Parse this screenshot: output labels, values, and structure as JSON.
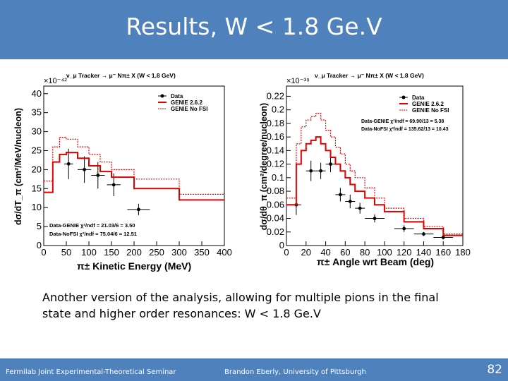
{
  "slide": {
    "title": "Results, W < 1.8 Ge.V",
    "caption": "Another version of the analysis, allowing for multiple pions in the final state and higher order resonances:  W < 1.8 Ge.V",
    "footer_left": "Fermilab Joint Experimental-Theoretical Seminar",
    "footer_center": "Brandon Eberly, University of Pittsburgh",
    "page_number": "82"
  },
  "colors": {
    "header": "#4f81bd",
    "genie": "#e00000",
    "nofsi": "#e00000",
    "data": "#000000"
  },
  "chart_data": [
    {
      "type": "line",
      "title": "ν_μ Tracker → μ⁻ Nπ± X  (W < 1.8 GeV)",
      "exponent": "×10⁻⁴²",
      "xlabel": "π± Kinetic Energy (MeV)",
      "ylabel": "dσ/dT_π  (cm²/MeV/nucleon)",
      "xlim": [
        0,
        400
      ],
      "ylim": [
        0,
        42
      ],
      "xticks": [
        "0",
        "50",
        "100",
        "150",
        "200",
        "250",
        "300",
        "350",
        "400"
      ],
      "yticks": [
        "0",
        "5",
        "10",
        "15",
        "20",
        "25",
        "30",
        "35",
        "40"
      ],
      "legend": {
        "placement": "top-right",
        "entries": [
          "Data",
          "GENIE 2.6.2",
          "GENIE No FSI"
        ]
      },
      "stats": [
        "Data-GENIE  χ²/ndf = 21.03/6 = 3.50",
        "Data-NoFSI  χ²/ndf = 75.04/6 = 12.51"
      ],
      "series": [
        {
          "name": "Data",
          "kind": "points",
          "x": [
            55,
            90,
            120,
            155,
            210
          ],
          "y": [
            21.5,
            20.0,
            18.5,
            16.0,
            9.5
          ],
          "yerr": [
            4.0,
            3.5,
            3.5,
            3.0,
            1.5
          ],
          "xerr": [
            10,
            15,
            15,
            15,
            25
          ]
        },
        {
          "name": "GENIE 2.6.2",
          "kind": "step",
          "edges": [
            0,
            20,
            35,
            50,
            75,
            100,
            125,
            150,
            200,
            300,
            400
          ],
          "values": [
            14.0,
            22.0,
            24.0,
            24.5,
            23.0,
            21.0,
            19.5,
            18.0,
            15.0,
            12.0
          ]
        },
        {
          "name": "GENIE No FSI",
          "kind": "step",
          "edges": [
            0,
            20,
            35,
            50,
            75,
            100,
            125,
            150,
            200,
            300,
            400
          ],
          "values": [
            17.0,
            26.0,
            28.5,
            28.0,
            26.0,
            24.0,
            22.0,
            20.0,
            17.5,
            13.5
          ]
        }
      ]
    },
    {
      "type": "line",
      "title": "ν_μ Tracker → μ⁻ Nπ± X  (W < 1.8 GeV)",
      "exponent": "×10⁻³⁹",
      "xlabel": "π± Angle wrt Beam (deg)",
      "ylabel": "dσ/dθ_π  (cm²/degree/nucleon)",
      "xlim": [
        0,
        180
      ],
      "ylim": [
        0,
        0.235
      ],
      "xticks": [
        "0",
        "20",
        "40",
        "60",
        "80",
        "100",
        "120",
        "140",
        "160",
        "180"
      ],
      "yticks": [
        "0",
        "0.02",
        "0.04",
        "0.06",
        "0.08",
        "0.1",
        "0.12",
        "0.14",
        "0.16",
        "0.18",
        "0.2",
        "0.22"
      ],
      "legend": {
        "placement": "top-right",
        "entries": [
          "Data",
          "GENIE 2.6.2",
          "GENIE No FSI"
        ]
      },
      "stats": [
        "Data-GENIE  χ²/ndf = 69.90/13 = 5.38",
        "Data-NoFSI  χ²/ndf = 135.62/13 = 10.43"
      ],
      "series": [
        {
          "name": "Data",
          "kind": "points",
          "x": [
            10,
            25,
            35,
            45,
            55,
            65,
            75,
            90,
            120,
            140,
            160
          ],
          "y": [
            0.06,
            0.11,
            0.11,
            0.12,
            0.075,
            0.065,
            0.055,
            0.04,
            0.025,
            0.017,
            0.012
          ],
          "yerr": [
            0.015,
            0.015,
            0.012,
            0.012,
            0.01,
            0.01,
            0.008,
            0.006,
            0.005,
            0.003,
            0.003
          ],
          "xerr": [
            5,
            5,
            5,
            5,
            5,
            5,
            5,
            10,
            10,
            10,
            10
          ]
        },
        {
          "name": "GENIE 2.6.2",
          "kind": "step",
          "edges": [
            0,
            10,
            15,
            20,
            25,
            30,
            35,
            40,
            45,
            50,
            55,
            60,
            65,
            70,
            80,
            90,
            100,
            120,
            140,
            160,
            180
          ],
          "values": [
            0.06,
            0.12,
            0.14,
            0.15,
            0.155,
            0.16,
            0.15,
            0.14,
            0.13,
            0.12,
            0.11,
            0.1,
            0.09,
            0.08,
            0.07,
            0.06,
            0.05,
            0.035,
            0.025,
            0.015
          ]
        },
        {
          "name": "GENIE No FSI",
          "kind": "step",
          "edges": [
            0,
            10,
            15,
            20,
            25,
            30,
            35,
            40,
            45,
            50,
            55,
            60,
            65,
            70,
            80,
            90,
            100,
            120,
            140,
            160,
            180
          ],
          "values": [
            0.07,
            0.15,
            0.175,
            0.185,
            0.19,
            0.195,
            0.185,
            0.17,
            0.16,
            0.145,
            0.135,
            0.12,
            0.11,
            0.1,
            0.085,
            0.07,
            0.055,
            0.04,
            0.028,
            0.017
          ]
        }
      ]
    }
  ]
}
